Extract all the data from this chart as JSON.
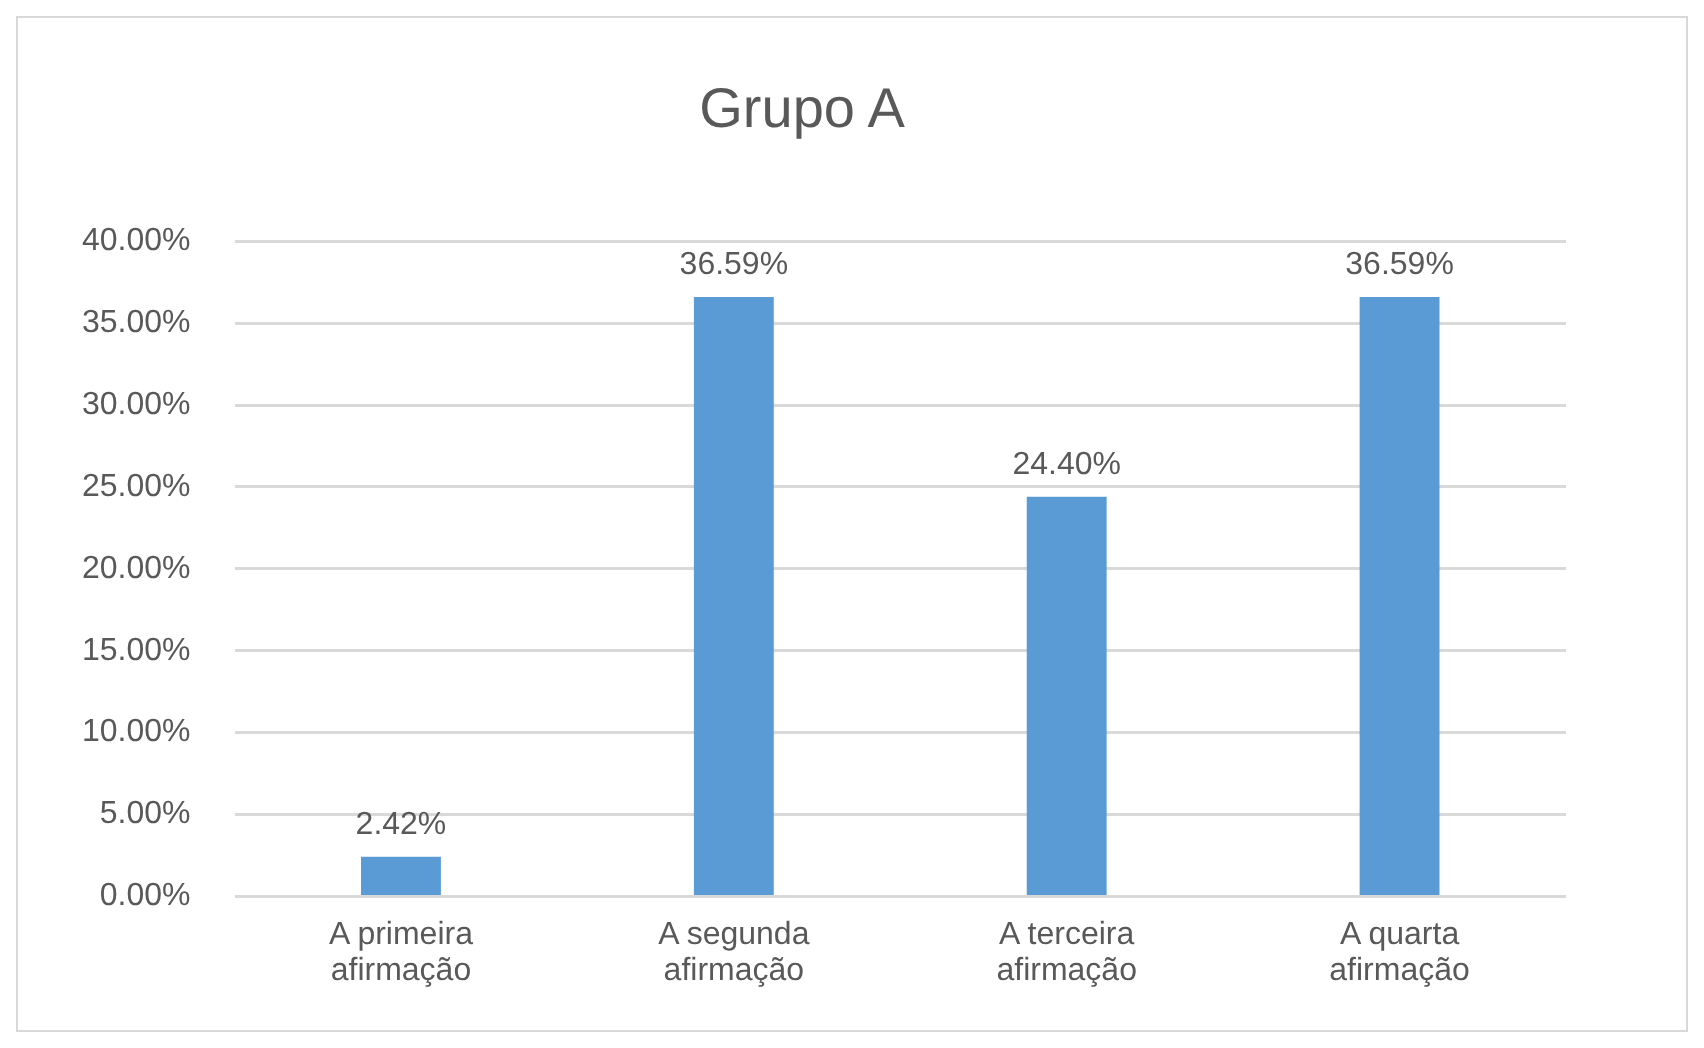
{
  "chart_data": {
    "type": "bar",
    "title": "Grupo A",
    "categories": [
      "A primeira afirmação",
      "A segunda afirmação",
      "A terceira afirmação",
      "A quarta afirmação"
    ],
    "values": [
      2.42,
      36.59,
      24.4,
      36.59
    ],
    "color": "#5b9bd5",
    "value_labels": [
      "2.42%",
      "36.59%",
      "24.40%",
      "36.59%"
    ],
    "ylim": [
      0,
      40
    ],
    "yticks": [
      {
        "value": 0,
        "label": "0.00%"
      },
      {
        "value": 5,
        "label": "5.00%"
      },
      {
        "value": 10,
        "label": "10.00%"
      },
      {
        "value": 15,
        "label": "15.00%"
      },
      {
        "value": 20,
        "label": "20.00%"
      },
      {
        "value": 25,
        "label": "25.00%"
      },
      {
        "value": 30,
        "label": "30.00%"
      },
      {
        "value": 35,
        "label": "35.00%"
      },
      {
        "value": 40,
        "label": "40.00%"
      }
    ],
    "grid": "y"
  }
}
